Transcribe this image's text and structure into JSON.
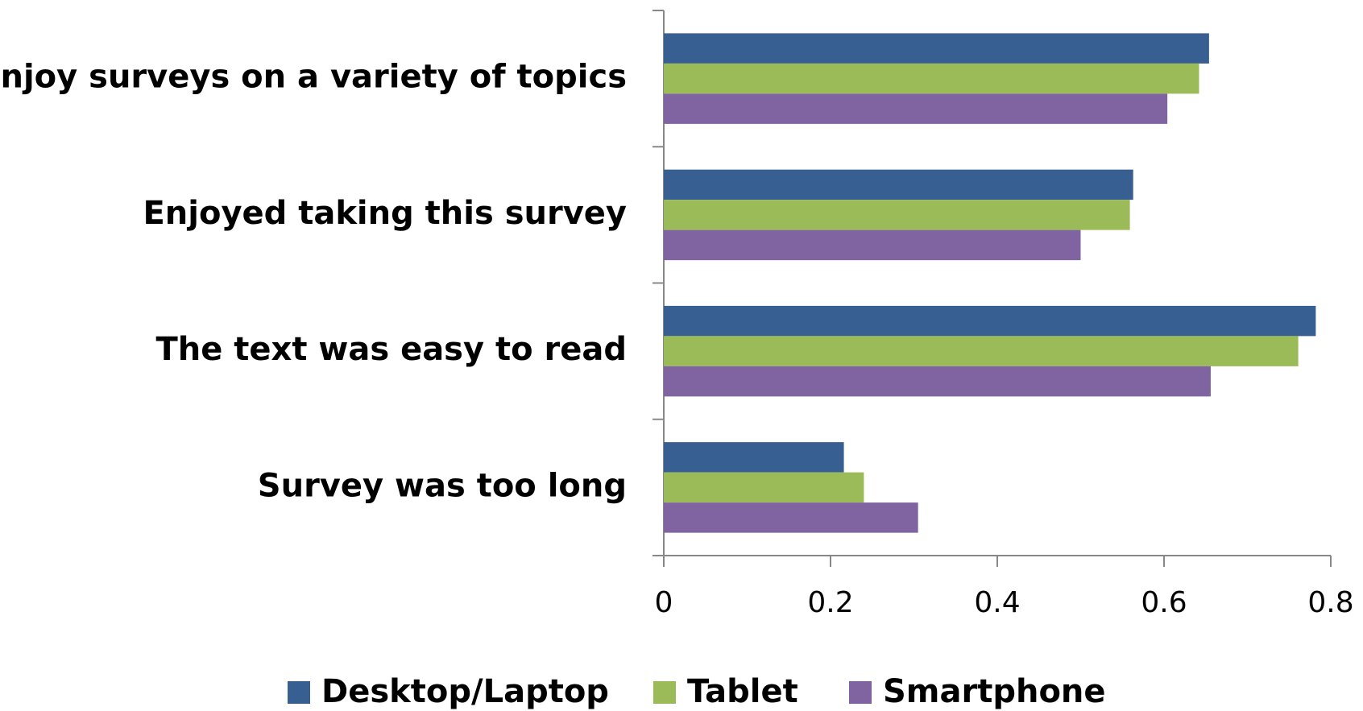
{
  "chart_data": {
    "type": "bar",
    "orientation": "horizontal",
    "categories": [
      "Enjoy surveys on a variety of topics",
      "Enjoyed taking this survey",
      "The text was easy to read",
      "Survey was too long"
    ],
    "series": [
      {
        "name": "Desktop/Laptop",
        "color": "#375f92",
        "values": [
          0.654,
          0.563,
          0.782,
          0.216
        ]
      },
      {
        "name": "Tablet",
        "color": "#9bbb59",
        "values": [
          0.642,
          0.559,
          0.761,
          0.24
        ]
      },
      {
        "name": "Smartphone",
        "color": "#8064a2",
        "values": [
          0.604,
          0.5,
          0.656,
          0.305
        ]
      }
    ],
    "xlim": [
      0,
      0.8
    ],
    "xticks": [
      0,
      0.2,
      0.4,
      0.6,
      0.8
    ],
    "grid": false,
    "legend": "bottom"
  }
}
